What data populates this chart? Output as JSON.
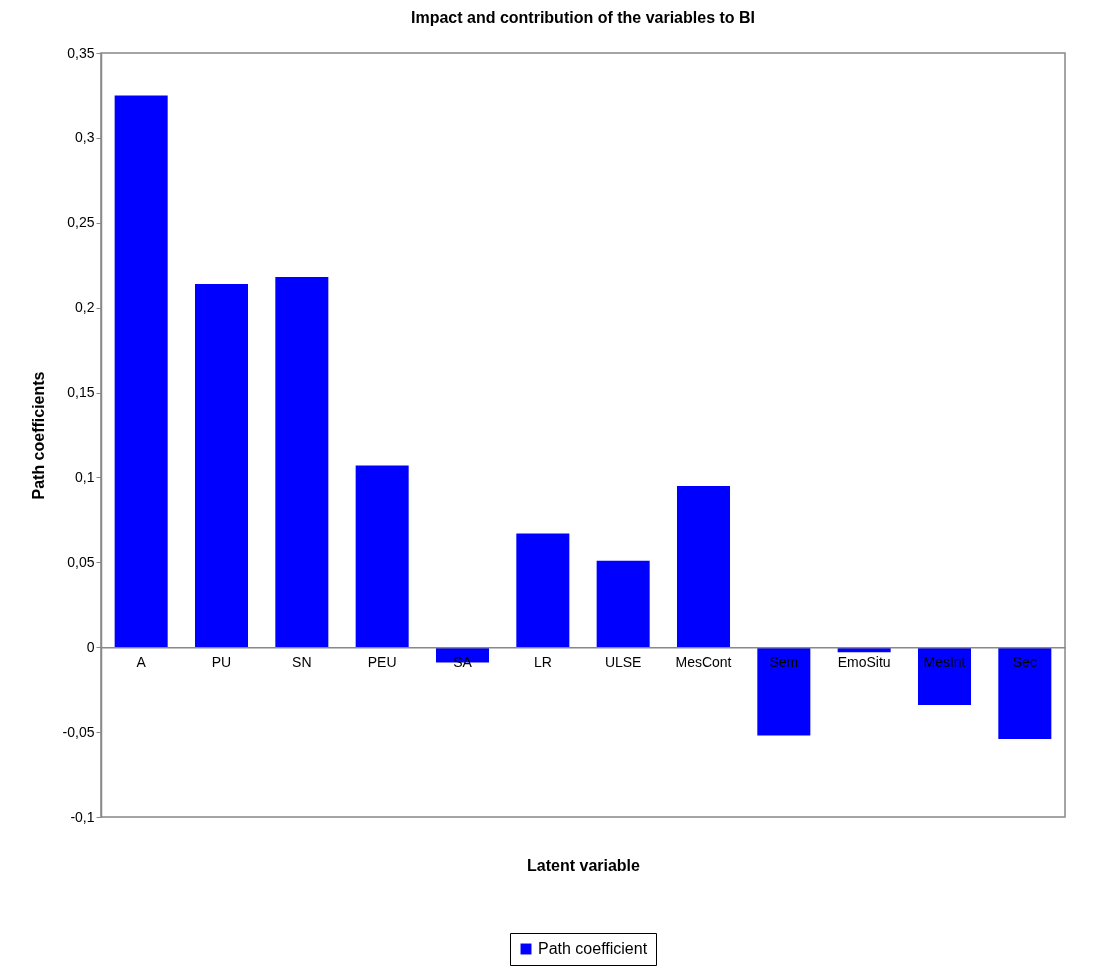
{
  "chart_data": {
    "type": "bar",
    "title": "Impact and contribution of the variables to BI",
    "xlabel": "Latent variable",
    "ylabel": "Path coefficients",
    "categories": [
      "A",
      "PU",
      "SN",
      "PEU",
      "SA",
      "LR",
      "ULSE",
      "MesCont",
      "Sem",
      "EmoSitu",
      "MesInt",
      "Sec"
    ],
    "series": [
      {
        "name": "Path coefficient",
        "color": "#0000ff",
        "values": [
          0.325,
          0.214,
          0.218,
          0.107,
          -0.009,
          0.067,
          0.051,
          0.095,
          -0.052,
          -0.003,
          -0.034,
          -0.054
        ]
      }
    ],
    "ylim": [
      -0.1,
      0.35
    ],
    "yticks": [
      {
        "value": -0.1,
        "label": "-0,1"
      },
      {
        "value": -0.05,
        "label": "-0,05"
      },
      0,
      {
        "value": 0.05,
        "label": "0,05"
      },
      {
        "value": 0.1,
        "label": "0,1"
      },
      {
        "value": 0.15,
        "label": "0,15"
      },
      {
        "value": 0.2,
        "label": "0,2"
      },
      {
        "value": 0.25,
        "label": "0,25"
      },
      {
        "value": 0.3,
        "label": "0,3"
      },
      {
        "value": 0.35,
        "label": "0,35"
      }
    ],
    "legend": "bottom"
  }
}
